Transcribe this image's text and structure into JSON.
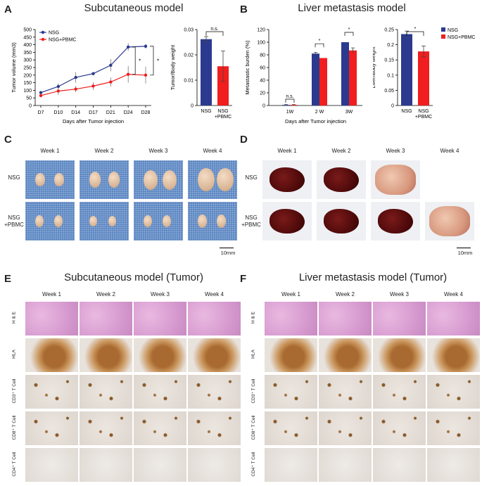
{
  "panels": {
    "A": {
      "label": "A",
      "title": "Subcutaneous model"
    },
    "B": {
      "label": "B",
      "title": "Liver metastasis model"
    },
    "C": {
      "label": "C"
    },
    "D": {
      "label": "D"
    },
    "E": {
      "label": "E",
      "title": "Subcutaneous model (Tumor)"
    },
    "F": {
      "label": "F",
      "title": "Liver metastasis model (Tumor)"
    }
  },
  "weeks": [
    "Week 1",
    "Week 2",
    "Week 3",
    "Week 4"
  ],
  "photo_rows": {
    "nsg": "NSG",
    "nsg_pbmc_line1": "NSG",
    "nsg_pbmc_line2": "+PBMC"
  },
  "scale_bar": "10mm",
  "histo_rows": [
    "H & E",
    "HLA",
    "CD3⁺ T Cell",
    "CD8⁺ T Cell",
    "CD4⁺ T Cell"
  ],
  "colors": {
    "nsg": "#2b3a8f",
    "pbmc": "#f01e1e"
  },
  "chart_data": [
    {
      "type": "line",
      "title": "",
      "xlabel": "Days after Tumor injection",
      "ylabel": "Tumor volume (mm3)",
      "categories": [
        "D7",
        "D10",
        "D14",
        "D17",
        "D21",
        "D24",
        "D28"
      ],
      "ylim": [
        0,
        500
      ],
      "yticks": [
        "0",
        "50",
        "100",
        "150",
        "200",
        "250",
        "300",
        "350",
        "400",
        "450",
        "500"
      ],
      "series": [
        {
          "name": "NSG",
          "values": [
            85,
            125,
            185,
            210,
            265,
            385,
            390
          ],
          "err": [
            10,
            20,
            35,
            10,
            40,
            25,
            15
          ]
        },
        {
          "name": "NSG+PBMC",
          "values": [
            65,
            95,
            108,
            128,
            155,
            205,
            200
          ],
          "err": [
            10,
            25,
            20,
            25,
            30,
            55,
            55
          ]
        }
      ],
      "annotations": [
        "*",
        "*"
      ]
    },
    {
      "type": "bar",
      "ylabel": "Tumor/Body weight",
      "categories": [
        "NSG",
        "NSG\n+PBMC"
      ],
      "cat_line1": [
        "NSG",
        "NSG"
      ],
      "cat_line2": [
        "",
        "+PBMC"
      ],
      "values": [
        0.0262,
        0.0155
      ],
      "err": [
        0.001,
        0.006
      ],
      "ylim": [
        0,
        0.03
      ],
      "yticks": [
        "0",
        "0.01",
        "0.02",
        "0.03"
      ],
      "annotation": "n.s."
    },
    {
      "type": "bar",
      "xlabel": "Days after Tumor injection",
      "ylabel": "Metastastic burden (%)",
      "categories": [
        "1W",
        "2 W",
        "3W"
      ],
      "series": [
        {
          "name": "NSG",
          "values": [
            1,
            82,
            100
          ],
          "err": [
            0.5,
            2,
            0
          ]
        },
        {
          "name": "NSG+PBMC",
          "values": [
            1,
            75,
            87
          ],
          "err": [
            0.5,
            0,
            4
          ]
        }
      ],
      "ylim": [
        0,
        120
      ],
      "yticks": [
        "0",
        "20",
        "40",
        "60",
        "80",
        "100",
        "120"
      ],
      "annotations": [
        "n.s.",
        "*",
        "*"
      ]
    },
    {
      "type": "bar",
      "ylabel": "Liver/Body weight",
      "categories": [
        "NSG",
        "NSG\n+PBMC"
      ],
      "cat_line1": [
        "NSG",
        "NSG"
      ],
      "cat_line2": [
        "",
        "+PBMC"
      ],
      "values": [
        0.235,
        0.178
      ],
      "err": [
        0.01,
        0.018
      ],
      "ylim": [
        0,
        0.25
      ],
      "yticks": [
        "0",
        "0.05",
        "0.1",
        "0.15",
        "0.2",
        "0.25"
      ],
      "annotation": "*",
      "legend": [
        "NSG",
        "NSG+PBMC"
      ]
    }
  ]
}
